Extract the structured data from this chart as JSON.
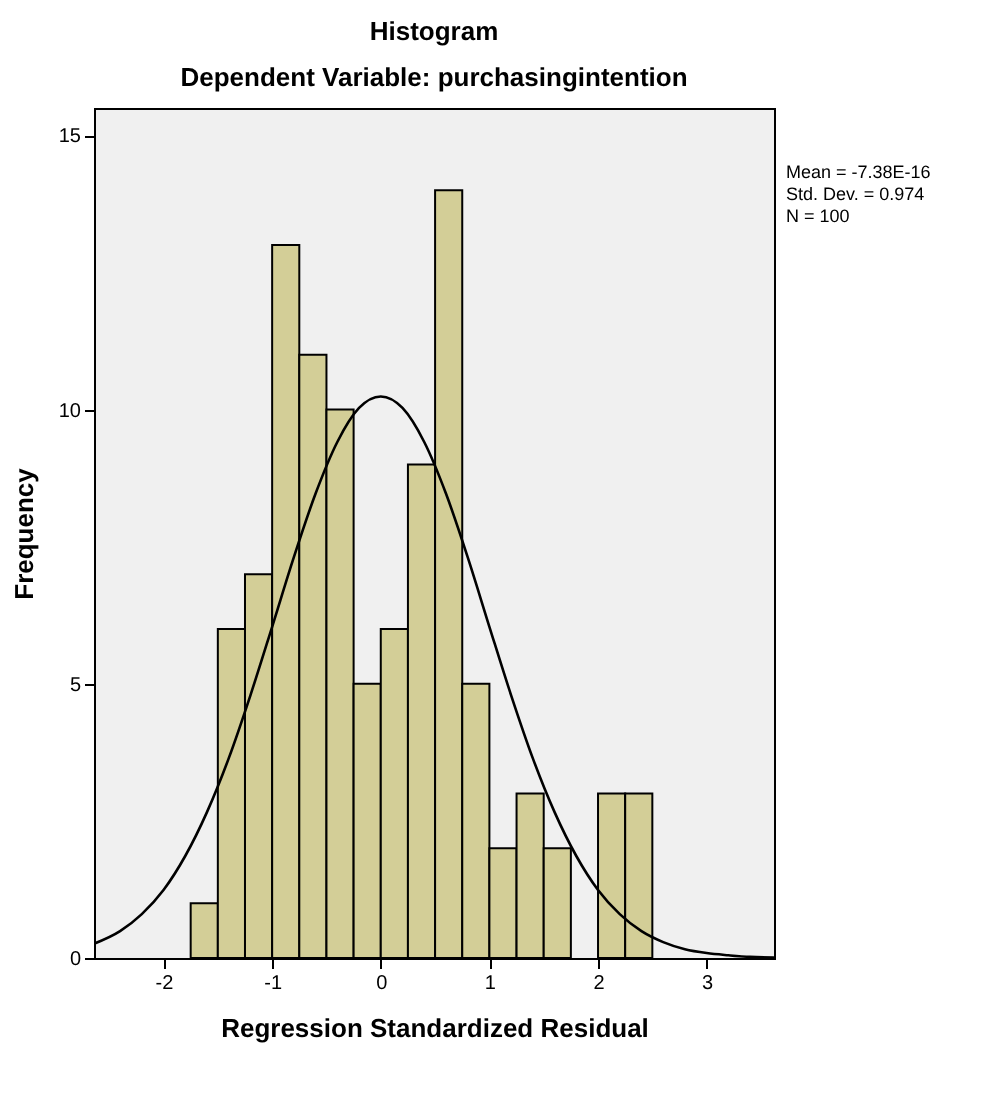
{
  "chart_data": {
    "type": "histogram",
    "title": "Histogram",
    "subtitle": "Dependent Variable: purchasingintention",
    "xlabel": "Regression Standardized Residual",
    "ylabel": "Frequency",
    "bins": [
      -1.75,
      -1.5,
      -1.25,
      -1.0,
      -0.75,
      -0.5,
      -0.25,
      0.0,
      0.25,
      0.5,
      0.75,
      1.0,
      1.25,
      1.5,
      1.75,
      2.0,
      2.25,
      2.5
    ],
    "series": [
      {
        "color": "#d3ce97",
        "values": [
          1,
          6,
          7,
          13,
          11,
          10,
          5,
          6,
          9,
          14,
          5,
          2,
          3,
          2,
          0,
          3,
          3
        ]
      },
      {
        "type": "line",
        "color": "#000000",
        "x": [
          -2.64,
          -2.4,
          -2.2,
          -2.0,
          -1.8,
          -1.6,
          -1.4,
          -1.2,
          -1.0,
          -0.8,
          -0.6,
          -0.4,
          -0.2,
          0.0,
          0.2,
          0.4,
          0.6,
          0.8,
          1.0,
          1.2,
          1.4,
          1.6,
          1.8,
          2.0,
          2.2,
          2.4,
          2.6,
          2.8,
          3.0,
          3.2,
          3.4,
          3.62
        ],
        "values": [
          0.26,
          0.49,
          0.8,
          1.24,
          1.86,
          2.66,
          3.64,
          4.79,
          6.04,
          7.31,
          8.47,
          9.41,
          10.03,
          10.24,
          10.03,
          9.41,
          8.47,
          7.31,
          6.04,
          4.79,
          3.64,
          2.66,
          1.86,
          1.24,
          0.8,
          0.49,
          0.29,
          0.16,
          0.09,
          0.05,
          0.02,
          0.01
        ]
      }
    ],
    "xlim": [
      -2.64,
      3.62
    ],
    "ylim": [
      0,
      15.5
    ],
    "xticks": [
      -2,
      -1,
      0,
      1,
      2,
      3
    ],
    "yticks": [
      0,
      5,
      10,
      15
    ],
    "grid": false,
    "annotations": [
      "Mean = -7.38E-16",
      "Std. Dev. = 0.974",
      "N = 100"
    ]
  }
}
